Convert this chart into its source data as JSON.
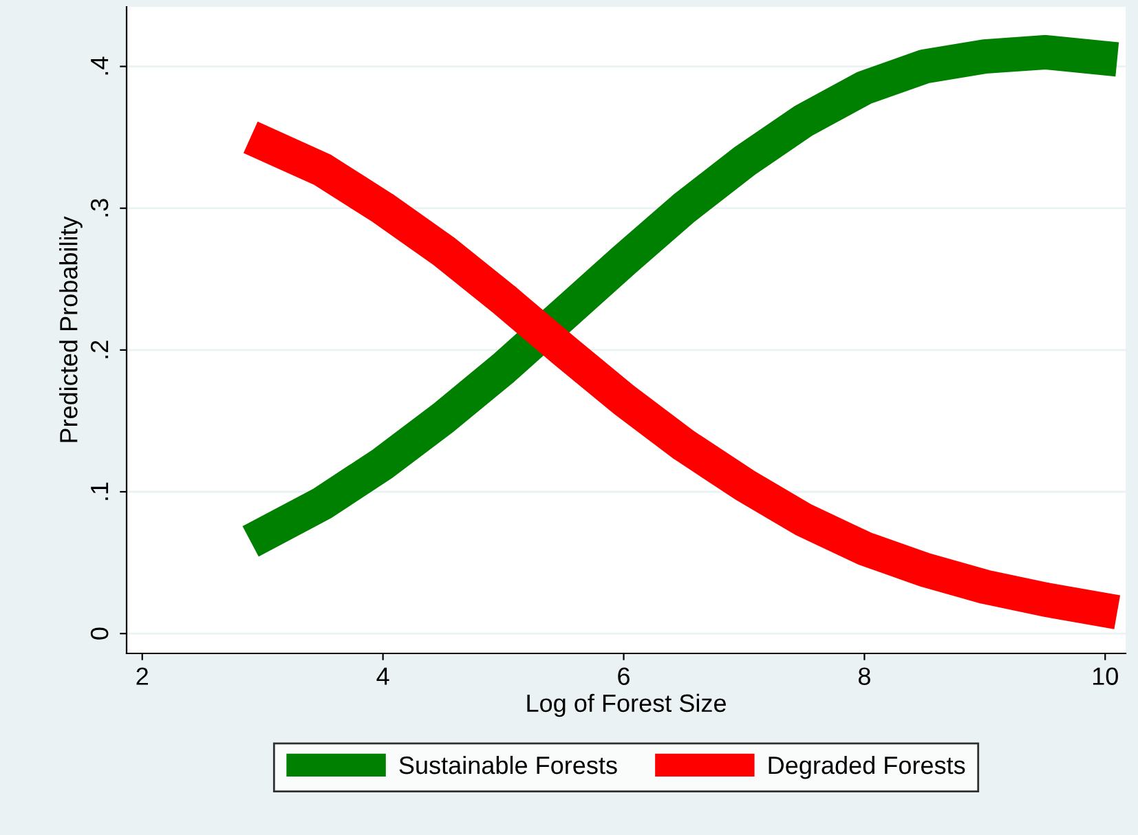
{
  "chart_data": {
    "type": "line",
    "xlabel": "Log of Forest Size",
    "ylabel": "Predicted Probability",
    "xlim": [
      1.87,
      10.17
    ],
    "ylim": [
      -0.014,
      0.442
    ],
    "xticks": [
      2,
      4,
      6,
      8,
      10
    ],
    "yticks": [
      0,
      {
        "value": 0.1,
        "label": ".1"
      },
      {
        "value": 0.2,
        "label": ".2"
      },
      {
        "value": 0.3,
        "label": ".3"
      },
      {
        "value": 0.4,
        "label": ".4"
      }
    ],
    "grid": "y",
    "legend": "bottom",
    "marker": "none",
    "line_style": "solid",
    "series": [
      {
        "name": "Sustainable Forests",
        "color": "#008000",
        "x": [
          2.9,
          3.5,
          4,
          4.5,
          5,
          5.5,
          6,
          6.5,
          7,
          7.5,
          8,
          8.5,
          9,
          9.5,
          10.1
        ],
        "values": [
          0.065,
          0.092,
          0.12,
          0.152,
          0.187,
          0.225,
          0.263,
          0.3,
          0.333,
          0.362,
          0.385,
          0.4,
          0.407,
          0.41,
          0.405
        ]
      },
      {
        "name": "Degraded Forests",
        "color": "#ff0000",
        "x": [
          2.9,
          3.5,
          4,
          4.5,
          5,
          5.5,
          6,
          6.5,
          7,
          7.5,
          8,
          8.5,
          9,
          9.5,
          10.1
        ],
        "values": [
          0.35,
          0.327,
          0.3,
          0.27,
          0.236,
          0.2,
          0.165,
          0.133,
          0.105,
          0.08,
          0.06,
          0.045,
          0.033,
          0.024,
          0.015
        ]
      }
    ]
  }
}
